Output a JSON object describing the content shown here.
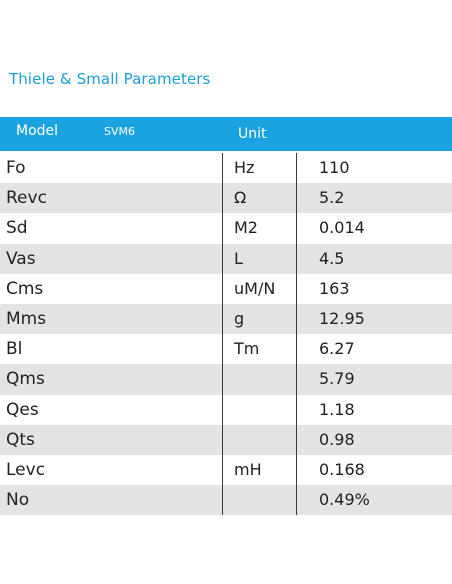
{
  "title": "Thiele & Small Parameters",
  "header": {
    "model_label": "Model",
    "model_name": "SVM6",
    "unit_label": "Unit"
  },
  "colors": {
    "accent": "#1aa3df",
    "title": "#1a9fd6",
    "row_alt": "#e4e4e6"
  },
  "rows": [
    {
      "param": "Fo",
      "unit": "Hz",
      "value": "110"
    },
    {
      "param": "Revc",
      "unit": "Ω",
      "value": "5.2"
    },
    {
      "param": "Sd",
      "unit": "M2",
      "value": "0.014"
    },
    {
      "param": "Vas",
      "unit": "L",
      "value": "4.5"
    },
    {
      "param": "Cms",
      "unit": "uM/N",
      "value": "163"
    },
    {
      "param": "Mms",
      "unit": "g",
      "value": "12.95"
    },
    {
      "param": "Bl",
      "unit": "Tm",
      "value": "6.27"
    },
    {
      "param": "Qms",
      "unit": "",
      "value": "5.79"
    },
    {
      "param": "Qes",
      "unit": "",
      "value": "1.18"
    },
    {
      "param": "Qts",
      "unit": "",
      "value": "0.98"
    },
    {
      "param": "Levc",
      "unit": "mH",
      "value": "0.168"
    },
    {
      "param": "No",
      "unit": "",
      "value": "0.49%"
    }
  ]
}
